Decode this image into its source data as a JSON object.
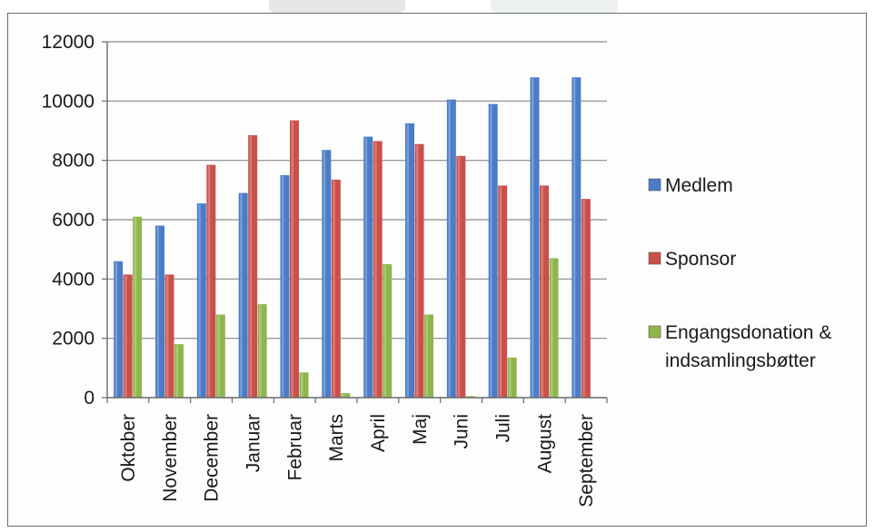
{
  "chart_data": {
    "type": "bar",
    "title": "",
    "xlabel": "",
    "ylabel": "",
    "ylim": [
      0,
      12000
    ],
    "yticks": [
      0,
      2000,
      4000,
      6000,
      8000,
      10000,
      12000
    ],
    "grid": true,
    "legend_position": "right",
    "categories": [
      "Oktober",
      "November",
      "December",
      "Januar",
      "Februar",
      "Marts",
      "April",
      "Maj",
      "Juni",
      "Juli",
      "August",
      "September"
    ],
    "series": [
      {
        "name": "Medlem",
        "color": "#4a7cc8",
        "values": [
          4600,
          5800,
          6550,
          6900,
          7500,
          8350,
          8800,
          9250,
          10050,
          9900,
          10800,
          10800
        ]
      },
      {
        "name": "Sponsor",
        "color": "#c9504b",
        "values": [
          4150,
          4150,
          7850,
          8850,
          9350,
          7350,
          8650,
          8550,
          8150,
          7150,
          7150,
          6700
        ]
      },
      {
        "name": "Engangsdonation & indsamlingsbøtter",
        "color": "#8fb54d",
        "values": [
          6100,
          1800,
          2800,
          3150,
          850,
          150,
          4500,
          2800,
          50,
          1350,
          4700,
          0
        ]
      }
    ]
  }
}
